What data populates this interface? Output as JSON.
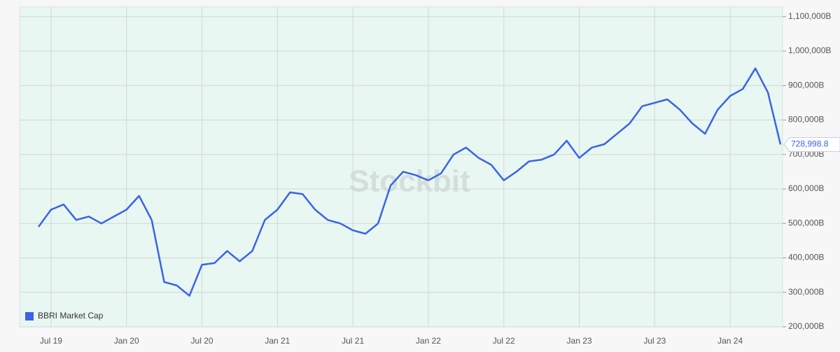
{
  "chart_data": {
    "type": "line",
    "watermark": "Stockbit",
    "x": [
      "Jun 19",
      "Jul 19",
      "Aug 19",
      "Sep 19",
      "Oct 19",
      "Nov 19",
      "Dec 19",
      "Jan 20",
      "Feb 20",
      "Mar 20",
      "Apr 20",
      "May 20",
      "Jun 20",
      "Jul 20",
      "Aug 20",
      "Sep 20",
      "Oct 20",
      "Nov 20",
      "Dec 20",
      "Jan 21",
      "Feb 21",
      "Mar 21",
      "Apr 21",
      "May 21",
      "Jun 21",
      "Jul 21",
      "Aug 21",
      "Sep 21",
      "Oct 21",
      "Nov 21",
      "Dec 21",
      "Jan 22",
      "Feb 22",
      "Mar 22",
      "Apr 22",
      "May 22",
      "Jun 22",
      "Jul 22",
      "Aug 22",
      "Sep 22",
      "Oct 22",
      "Nov 22",
      "Dec 22",
      "Jan 23",
      "Feb 23",
      "Mar 23",
      "Apr 23",
      "May 23",
      "Jun 23",
      "Jul 23",
      "Aug 23",
      "Sep 23",
      "Oct 23",
      "Nov 23",
      "Dec 23",
      "Jan 24",
      "Feb 24",
      "Mar 24",
      "Apr 24",
      "May 24"
    ],
    "series": [
      {
        "name": "BBRI Market Cap",
        "color": "#3a63e8",
        "values": [
          490000,
          540000,
          555000,
          510000,
          520000,
          500000,
          520000,
          540000,
          580000,
          510000,
          330000,
          320000,
          290000,
          380000,
          385000,
          420000,
          390000,
          420000,
          510000,
          540000,
          590000,
          585000,
          540000,
          510000,
          500000,
          480000,
          470000,
          500000,
          610000,
          650000,
          640000,
          625000,
          645000,
          700000,
          720000,
          690000,
          670000,
          625000,
          650000,
          680000,
          685000,
          700000,
          740000,
          690000,
          720000,
          730000,
          760000,
          790000,
          840000,
          850000,
          860000,
          830000,
          790000,
          760000,
          830000,
          870000,
          890000,
          950000,
          880000,
          728998.8
        ],
        "value_labels": [
          null,
          null,
          null,
          null,
          null,
          null,
          null,
          null,
          null,
          null,
          null,
          null,
          null,
          null,
          null,
          null,
          null,
          null,
          null,
          null,
          null,
          null,
          null,
          null,
          null,
          null,
          null,
          null,
          null,
          null,
          null,
          null,
          null,
          null,
          null,
          null,
          null,
          null,
          null,
          null,
          null,
          null,
          null,
          null,
          null,
          null,
          null,
          null,
          null,
          null,
          null,
          null,
          null,
          null,
          null,
          null,
          null,
          null,
          null,
          "728,998.8"
        ]
      }
    ],
    "xlim": [
      "May 19",
      "May 24"
    ],
    "xticks": [
      "Jul 19",
      "Jan 20",
      "Jul 20",
      "Jan 21",
      "Jul 21",
      "Jan 22",
      "Jul 22",
      "Jan 23",
      "Jul 23",
      "Jan 24"
    ],
    "ylim": [
      200000,
      1128000
    ],
    "yticks": [
      {
        "value": 200000,
        "label": "200,000B"
      },
      {
        "value": 300000,
        "label": "300,000B"
      },
      {
        "value": 400000,
        "label": "400,000B"
      },
      {
        "value": 500000,
        "label": "500,000B"
      },
      {
        "value": 600000,
        "label": "600,000B"
      },
      {
        "value": 700000,
        "label": "700,000B"
      },
      {
        "value": 800000,
        "label": "800,000B"
      },
      {
        "value": 900000,
        "label": "900,000B"
      },
      {
        "value": 1000000,
        "label": "1,000,000B"
      },
      {
        "value": 1100000,
        "label": "1,100,000B"
      }
    ],
    "grid": true,
    "legend": "bottom-left"
  }
}
